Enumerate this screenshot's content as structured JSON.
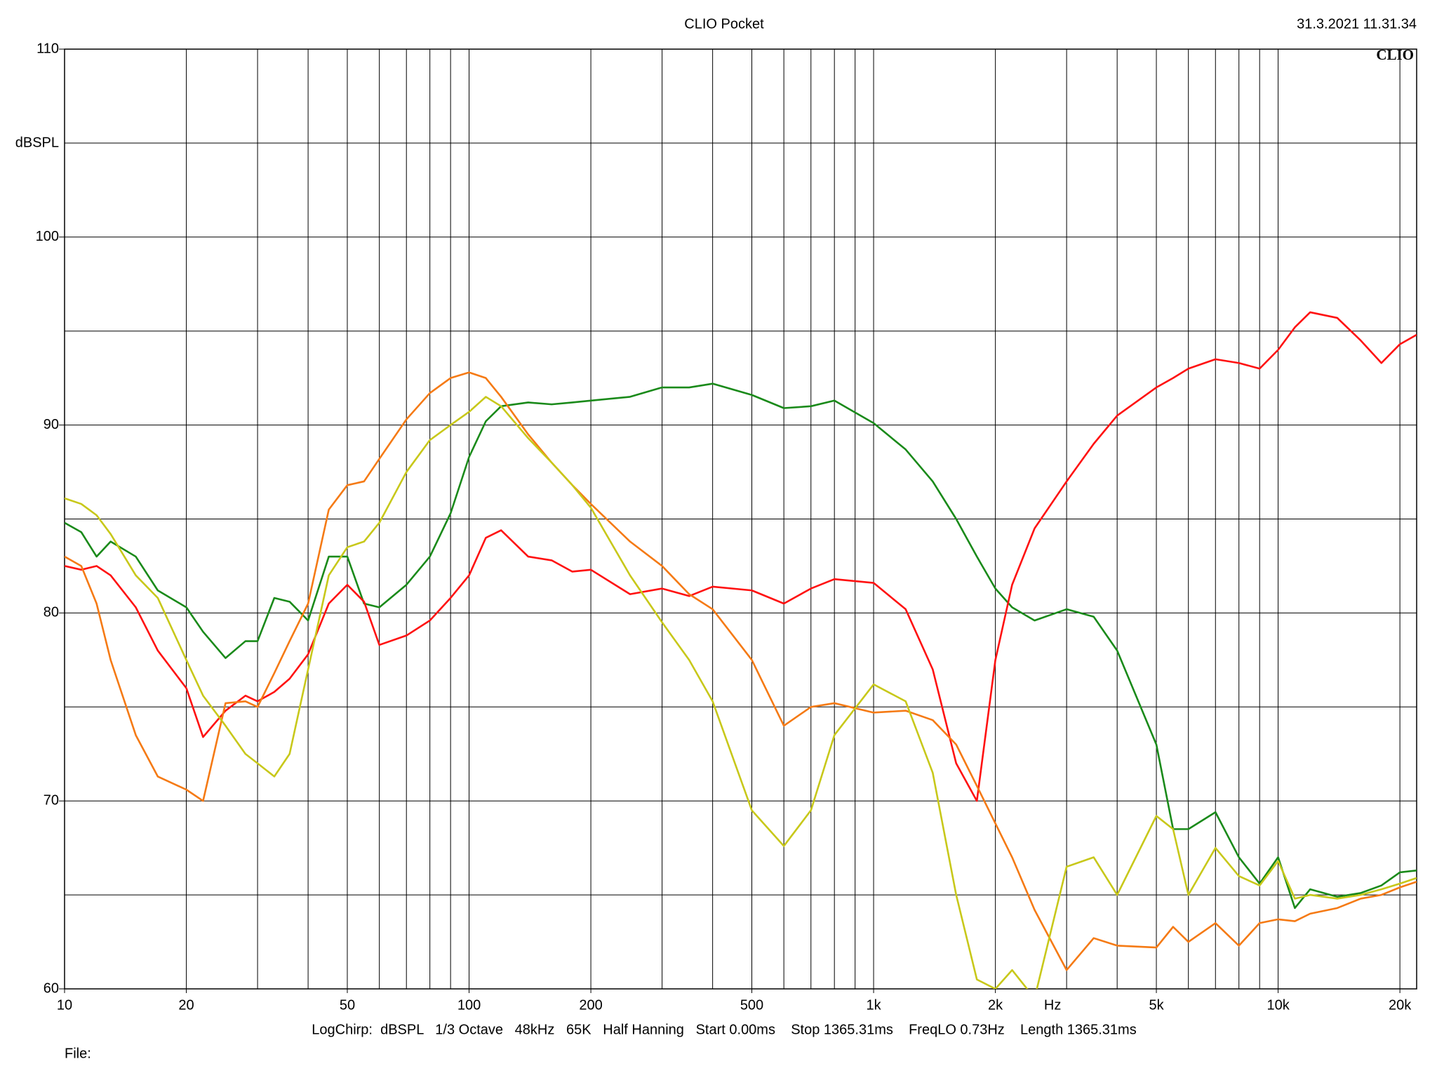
{
  "chart_data": {
    "type": "line",
    "title": "CLIO Pocket",
    "timestamp": "31.3.2021 11.31.34",
    "logo": "CLIO",
    "y_label": "dBSPL",
    "x_label": "Hz",
    "footer": "LogChirp:  dBSPL   1/3 Octave   48kHz   65K   Half Hanning   Start 0.00ms    Stop 1365.31ms    FreqLO 0.73Hz    Length 1365.31ms",
    "file_label": "File:",
    "x_scale": "log",
    "grid": true,
    "xlim": [
      10,
      22000
    ],
    "ylim": [
      60,
      110
    ],
    "xticks": [
      10,
      20,
      50,
      100,
      200,
      500,
      {
        "value": 1000,
        "label": "1k"
      },
      {
        "value": 2000,
        "label": "2k"
      },
      {
        "value": 5000,
        "label": "5k"
      },
      {
        "value": 10000,
        "label": "10k"
      },
      {
        "value": 20000,
        "label": "20k"
      }
    ],
    "xgrid_minor": [
      30,
      40,
      60,
      70,
      80,
      90,
      300,
      400,
      600,
      700,
      800,
      900,
      3000,
      4000,
      6000,
      7000,
      8000,
      9000
    ],
    "yticks": [
      60,
      70,
      80,
      90,
      100,
      110
    ],
    "ygrid_minor": [
      65,
      75,
      85,
      95,
      105
    ],
    "x": [
      10,
      11,
      12,
      13,
      15,
      17,
      20,
      22,
      25,
      28,
      30,
      33,
      36,
      40,
      45,
      50,
      55,
      60,
      70,
      80,
      90,
      100,
      110,
      120,
      140,
      160,
      180,
      200,
      250,
      300,
      350,
      400,
      500,
      600,
      700,
      800,
      1000,
      1200,
      1400,
      1600,
      1800,
      2000,
      2200,
      2500,
      3000,
      3500,
      4000,
      5000,
      5500,
      6000,
      7000,
      8000,
      9000,
      10000,
      11000,
      12000,
      14000,
      16000,
      18000,
      20000,
      22000
    ],
    "series": [
      {
        "color": "#1a8a1a",
        "values": [
          84.8,
          84.3,
          83.0,
          83.8,
          83.0,
          81.2,
          80.3,
          79.0,
          77.6,
          78.5,
          78.5,
          80.8,
          80.6,
          79.6,
          83.0,
          83.0,
          80.5,
          80.3,
          81.5,
          83.0,
          85.3,
          88.3,
          90.2,
          91.0,
          91.2,
          91.1,
          91.2,
          91.3,
          91.5,
          92.0,
          92.0,
          92.2,
          91.6,
          90.9,
          91.0,
          91.3,
          90.1,
          88.7,
          87.0,
          85.0,
          83.0,
          81.3,
          80.3,
          79.6,
          80.2,
          79.8,
          78.0,
          73.0,
          68.5,
          68.5,
          69.4,
          67.0,
          65.6,
          67.0,
          64.3,
          65.3,
          64.9,
          65.1,
          65.5,
          66.2,
          66.3
        ]
      },
      {
        "color": "#ff1010",
        "values": [
          82.5,
          82.3,
          82.5,
          82.0,
          80.3,
          78.0,
          76.0,
          73.4,
          74.8,
          75.6,
          75.3,
          75.8,
          76.5,
          77.8,
          80.5,
          81.5,
          80.6,
          78.3,
          78.8,
          79.6,
          80.8,
          82.0,
          84.0,
          84.4,
          83.0,
          82.8,
          82.2,
          82.3,
          81.0,
          81.3,
          80.9,
          81.4,
          81.2,
          80.5,
          81.3,
          81.8,
          81.6,
          80.2,
          77.0,
          72.0,
          70.0,
          77.5,
          81.5,
          84.5,
          87.0,
          89.0,
          90.5,
          92.0,
          92.5,
          93.0,
          93.5,
          93.3,
          93.0,
          94.0,
          95.2,
          96.0,
          95.7,
          94.5,
          93.3,
          94.3,
          94.8
        ]
      },
      {
        "color": "#f57a14",
        "values": [
          83.0,
          82.5,
          80.5,
          77.5,
          73.5,
          71.3,
          70.6,
          70.0,
          75.2,
          75.3,
          75.0,
          76.8,
          78.5,
          80.5,
          85.5,
          86.8,
          87.0,
          88.2,
          90.3,
          91.7,
          92.5,
          92.8,
          92.5,
          91.5,
          89.5,
          88.0,
          86.8,
          85.8,
          83.8,
          82.5,
          81.0,
          80.2,
          77.5,
          74.0,
          75.0,
          75.2,
          74.7,
          74.8,
          74.3,
          73.0,
          70.8,
          68.8,
          67.0,
          64.2,
          61.0,
          62.7,
          62.3,
          62.2,
          63.3,
          62.5,
          63.5,
          62.3,
          63.5,
          63.7,
          63.6,
          64.0,
          64.3,
          64.8,
          65.0,
          65.4,
          65.7
        ]
      },
      {
        "color": "#c8c81a",
        "values": [
          86.1,
          85.8,
          85.2,
          84.2,
          82.0,
          80.8,
          77.5,
          75.6,
          74.0,
          72.5,
          72.0,
          71.3,
          72.5,
          77.0,
          82.0,
          83.5,
          83.8,
          84.8,
          87.5,
          89.2,
          90.0,
          90.7,
          91.5,
          91.0,
          89.3,
          88.0,
          86.8,
          85.6,
          82.0,
          79.5,
          77.5,
          75.3,
          69.5,
          67.6,
          69.5,
          73.5,
          76.2,
          75.3,
          71.5,
          65.0,
          60.5,
          60.0,
          61.0,
          59.5,
          66.5,
          67.0,
          65.0,
          69.2,
          68.5,
          65.0,
          67.5,
          66.0,
          65.5,
          66.8,
          64.8,
          65.0,
          64.8,
          65.0,
          65.3,
          65.6,
          65.9
        ]
      }
    ]
  }
}
